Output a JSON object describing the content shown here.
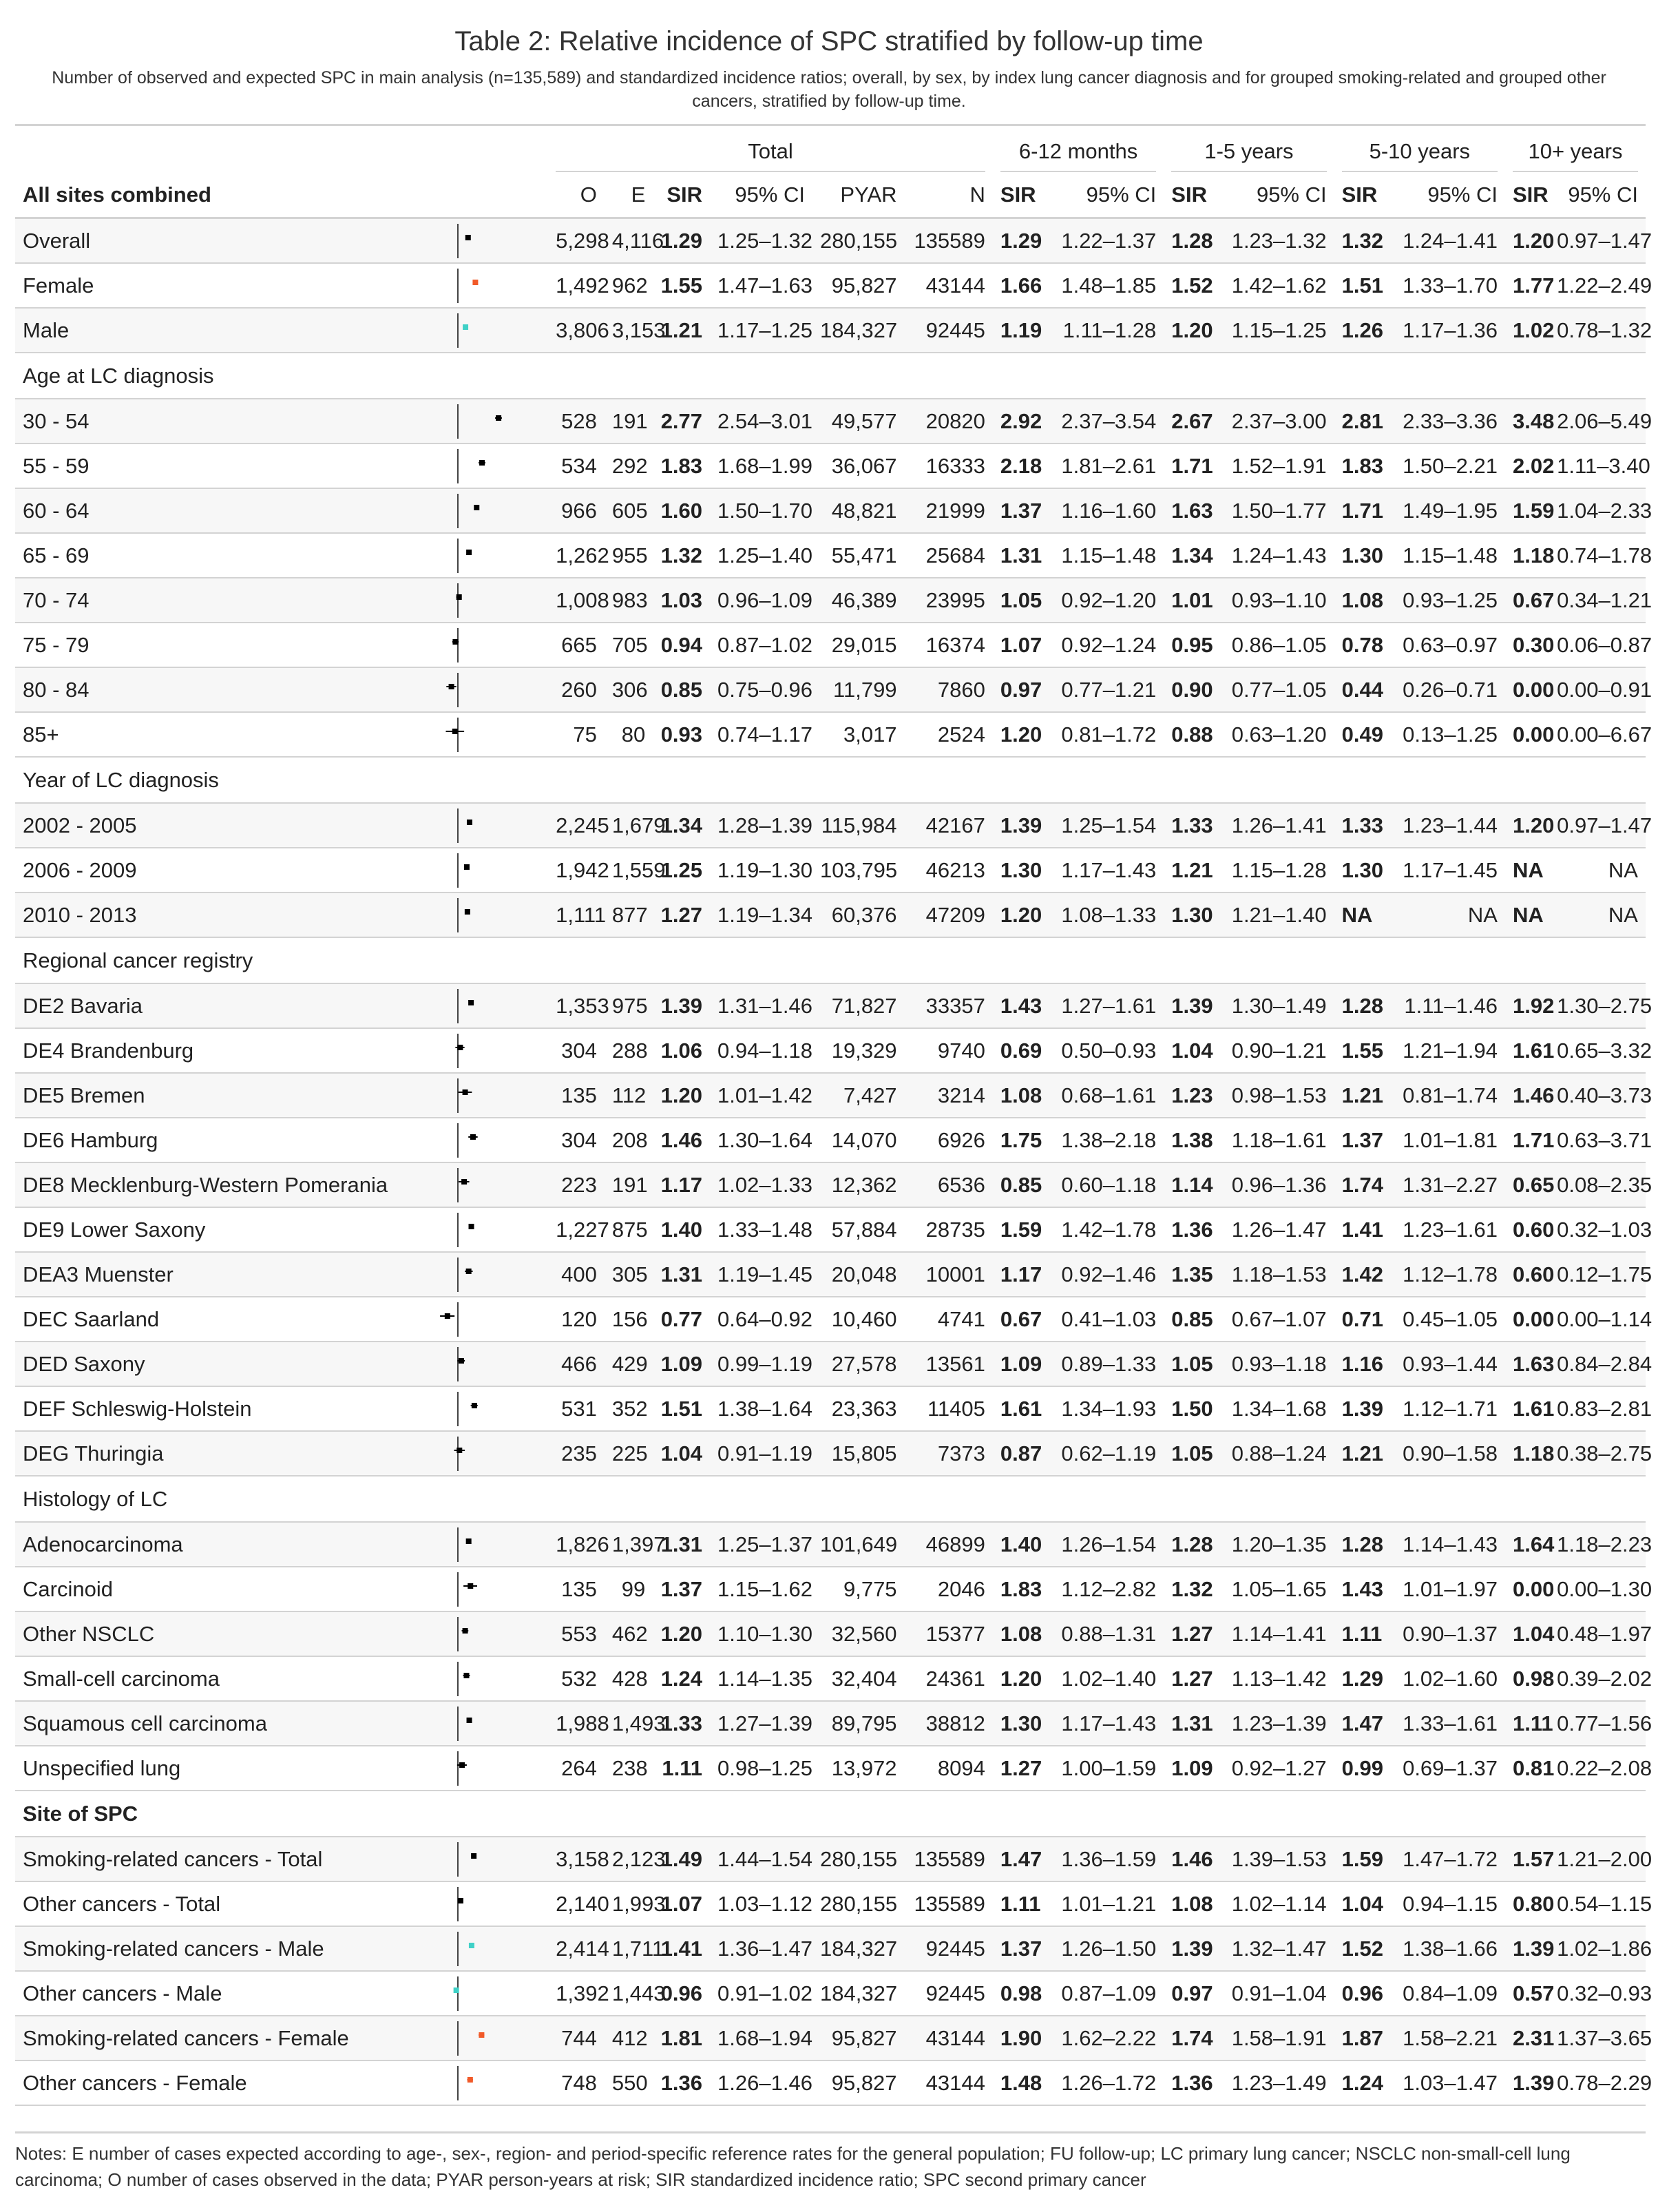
{
  "title": "Table 2: Relative incidence of SPC stratified by follow-up time",
  "subtitle": "Number of observed and expected SPC in main analysis (n=135,589) and standardized incidence ratios; overall, by sex, by index lung cancer diagnosis and for grouped smoking-related and grouped other cancers, stratified by follow-up time.",
  "spanners": [
    "Total",
    "6-12 months",
    "1-5 years",
    "5-10 years",
    "10+ years"
  ],
  "lead_header": "All sites combined",
  "col_headers": [
    "O",
    "E",
    "SIR",
    "95% CI",
    "PYAR",
    "N",
    "SIR",
    "95% CI",
    "SIR",
    "95% CI",
    "SIR",
    "95% CI",
    "SIR",
    "95% CI"
  ],
  "colors": {
    "female": "#f15a29",
    "male": "#3fd1c7",
    "default": "#000000",
    "rule": "#d3d3d3"
  },
  "rows": [
    {
      "label": "Overall",
      "O": "5,298",
      "E": "4,116",
      "SIR": "1.29",
      "CI": "1.25–1.32",
      "PYAR": "280,155",
      "N": "135589",
      "s1": "1.29",
      "c1": "1.22–1.37",
      "s2": "1.28",
      "c2": "1.23–1.32",
      "s3": "1.32",
      "c3": "1.24–1.41",
      "s4": "1.20",
      "c4": "0.97–1.47",
      "est": 1.29,
      "lo": 1.25,
      "hi": 1.32,
      "mc": "default"
    },
    {
      "label": "Female",
      "O": "1,492",
      "E": "962",
      "SIR": "1.55",
      "CI": "1.47–1.63",
      "PYAR": "95,827",
      "N": "43144",
      "s1": "1.66",
      "c1": "1.48–1.85",
      "s2": "1.52",
      "c2": "1.42–1.62",
      "s3": "1.51",
      "c3": "1.33–1.70",
      "s4": "1.77",
      "c4": "1.22–2.49",
      "est": 1.55,
      "lo": 1.47,
      "hi": 1.63,
      "mc": "female"
    },
    {
      "label": "Male",
      "O": "3,806",
      "E": "3,153",
      "SIR": "1.21",
      "CI": "1.17–1.25",
      "PYAR": "184,327",
      "N": "92445",
      "s1": "1.19",
      "c1": "1.11–1.28",
      "s2": "1.20",
      "c2": "1.15–1.25",
      "s3": "1.26",
      "c3": "1.17–1.36",
      "s4": "1.02",
      "c4": "0.78–1.32",
      "est": 1.21,
      "lo": 1.17,
      "hi": 1.25,
      "mc": "male"
    },
    {
      "group": "Age at LC diagnosis"
    },
    {
      "label": "30 - 54",
      "O": "528",
      "E": "191",
      "SIR": "2.77",
      "CI": "2.54–3.01",
      "PYAR": "49,577",
      "N": "20820",
      "s1": "2.92",
      "c1": "2.37–3.54",
      "s2": "2.67",
      "c2": "2.37–3.00",
      "s3": "2.81",
      "c3": "2.33–3.36",
      "s4": "3.48",
      "c4": "2.06–5.49",
      "est": 2.77,
      "lo": 2.54,
      "hi": 3.01,
      "mc": "default"
    },
    {
      "label": "55 - 59",
      "O": "534",
      "E": "292",
      "SIR": "1.83",
      "CI": "1.68–1.99",
      "PYAR": "36,067",
      "N": "16333",
      "s1": "2.18",
      "c1": "1.81–2.61",
      "s2": "1.71",
      "c2": "1.52–1.91",
      "s3": "1.83",
      "c3": "1.50–2.21",
      "s4": "2.02",
      "c4": "1.11–3.40",
      "est": 1.83,
      "lo": 1.68,
      "hi": 1.99,
      "mc": "default"
    },
    {
      "label": "60 - 64",
      "O": "966",
      "E": "605",
      "SIR": "1.60",
      "CI": "1.50–1.70",
      "PYAR": "48,821",
      "N": "21999",
      "s1": "1.37",
      "c1": "1.16–1.60",
      "s2": "1.63",
      "c2": "1.50–1.77",
      "s3": "1.71",
      "c3": "1.49–1.95",
      "s4": "1.59",
      "c4": "1.04–2.33",
      "est": 1.6,
      "lo": 1.5,
      "hi": 1.7,
      "mc": "default"
    },
    {
      "label": "65 - 69",
      "O": "1,262",
      "E": "955",
      "SIR": "1.32",
      "CI": "1.25–1.40",
      "PYAR": "55,471",
      "N": "25684",
      "s1": "1.31",
      "c1": "1.15–1.48",
      "s2": "1.34",
      "c2": "1.24–1.43",
      "s3": "1.30",
      "c3": "1.15–1.48",
      "s4": "1.18",
      "c4": "0.74–1.78",
      "est": 1.32,
      "lo": 1.25,
      "hi": 1.4,
      "mc": "default"
    },
    {
      "label": "70 - 74",
      "O": "1,008",
      "E": "983",
      "SIR": "1.03",
      "CI": "0.96–1.09",
      "PYAR": "46,389",
      "N": "23995",
      "s1": "1.05",
      "c1": "0.92–1.20",
      "s2": "1.01",
      "c2": "0.93–1.10",
      "s3": "1.08",
      "c3": "0.93–1.25",
      "s4": "0.67",
      "c4": "0.34–1.21",
      "est": 1.03,
      "lo": 0.96,
      "hi": 1.09,
      "mc": "default"
    },
    {
      "label": "75 - 79",
      "O": "665",
      "E": "705",
      "SIR": "0.94",
      "CI": "0.87–1.02",
      "PYAR": "29,015",
      "N": "16374",
      "s1": "1.07",
      "c1": "0.92–1.24",
      "s2": "0.95",
      "c2": "0.86–1.05",
      "s3": "0.78",
      "c3": "0.63–0.97",
      "s4": "0.30",
      "c4": "0.06–0.87",
      "est": 0.94,
      "lo": 0.87,
      "hi": 1.02,
      "mc": "default"
    },
    {
      "label": "80 - 84",
      "O": "260",
      "E": "306",
      "SIR": "0.85",
      "CI": "0.75–0.96",
      "PYAR": "11,799",
      "N": "7860",
      "s1": "0.97",
      "c1": "0.77–1.21",
      "s2": "0.90",
      "c2": "0.77–1.05",
      "s3": "0.44",
      "c3": "0.26–0.71",
      "s4": "0.00",
      "c4": "0.00–0.91",
      "est": 0.85,
      "lo": 0.75,
      "hi": 0.96,
      "mc": "default"
    },
    {
      "label": "85+",
      "O": "75",
      "E": "80",
      "SIR": "0.93",
      "CI": "0.74–1.17",
      "PYAR": "3,017",
      "N": "2524",
      "s1": "1.20",
      "c1": "0.81–1.72",
      "s2": "0.88",
      "c2": "0.63–1.20",
      "s3": "0.49",
      "c3": "0.13–1.25",
      "s4": "0.00",
      "c4": "0.00–6.67",
      "est": 0.93,
      "lo": 0.74,
      "hi": 1.17,
      "mc": "default"
    },
    {
      "group": "Year of LC diagnosis"
    },
    {
      "label": "2002 - 2005",
      "O": "2,245",
      "E": "1,679",
      "SIR": "1.34",
      "CI": "1.28–1.39",
      "PYAR": "115,984",
      "N": "42167",
      "s1": "1.39",
      "c1": "1.25–1.54",
      "s2": "1.33",
      "c2": "1.26–1.41",
      "s3": "1.33",
      "c3": "1.23–1.44",
      "s4": "1.20",
      "c4": "0.97–1.47",
      "est": 1.34,
      "lo": 1.28,
      "hi": 1.39,
      "mc": "default"
    },
    {
      "label": "2006 - 2009",
      "O": "1,942",
      "E": "1,559",
      "SIR": "1.25",
      "CI": "1.19–1.30",
      "PYAR": "103,795",
      "N": "46213",
      "s1": "1.30",
      "c1": "1.17–1.43",
      "s2": "1.21",
      "c2": "1.15–1.28",
      "s3": "1.30",
      "c3": "1.17–1.45",
      "s4": "NA",
      "c4": "NA",
      "est": 1.25,
      "lo": 1.19,
      "hi": 1.3,
      "mc": "default"
    },
    {
      "label": "2010 - 2013",
      "O": "1,111",
      "E": "877",
      "SIR": "1.27",
      "CI": "1.19–1.34",
      "PYAR": "60,376",
      "N": "47209",
      "s1": "1.20",
      "c1": "1.08–1.33",
      "s2": "1.30",
      "c2": "1.21–1.40",
      "s3": "NA",
      "c3": "NA",
      "s4": "NA",
      "c4": "NA",
      "est": 1.27,
      "lo": 1.19,
      "hi": 1.34,
      "mc": "default"
    },
    {
      "group": "Regional cancer registry"
    },
    {
      "label": "DE2 Bavaria",
      "O": "1,353",
      "E": "975",
      "SIR": "1.39",
      "CI": "1.31–1.46",
      "PYAR": "71,827",
      "N": "33357",
      "s1": "1.43",
      "c1": "1.27–1.61",
      "s2": "1.39",
      "c2": "1.30–1.49",
      "s3": "1.28",
      "c3": "1.11–1.46",
      "s4": "1.92",
      "c4": "1.30–2.75",
      "est": 1.39,
      "lo": 1.31,
      "hi": 1.46,
      "mc": "default"
    },
    {
      "label": "DE4 Brandenburg",
      "O": "304",
      "E": "288",
      "SIR": "1.06",
      "CI": "0.94–1.18",
      "PYAR": "19,329",
      "N": "9740",
      "s1": "0.69",
      "c1": "0.50–0.93",
      "s2": "1.04",
      "c2": "0.90–1.21",
      "s3": "1.55",
      "c3": "1.21–1.94",
      "s4": "1.61",
      "c4": "0.65–3.32",
      "est": 1.06,
      "lo": 0.94,
      "hi": 1.18,
      "mc": "default"
    },
    {
      "label": "DE5 Bremen",
      "O": "135",
      "E": "112",
      "SIR": "1.20",
      "CI": "1.01–1.42",
      "PYAR": "7,427",
      "N": "3214",
      "s1": "1.08",
      "c1": "0.68–1.61",
      "s2": "1.23",
      "c2": "0.98–1.53",
      "s3": "1.21",
      "c3": "0.81–1.74",
      "s4": "1.46",
      "c4": "0.40–3.73",
      "est": 1.2,
      "lo": 1.01,
      "hi": 1.42,
      "mc": "default"
    },
    {
      "label": "DE6 Hamburg",
      "O": "304",
      "E": "208",
      "SIR": "1.46",
      "CI": "1.30–1.64",
      "PYAR": "14,070",
      "N": "6926",
      "s1": "1.75",
      "c1": "1.38–2.18",
      "s2": "1.38",
      "c2": "1.18–1.61",
      "s3": "1.37",
      "c3": "1.01–1.81",
      "s4": "1.71",
      "c4": "0.63–3.71",
      "est": 1.46,
      "lo": 1.3,
      "hi": 1.64,
      "mc": "default"
    },
    {
      "label": "DE8 Mecklenburg-Western Pomerania",
      "O": "223",
      "E": "191",
      "SIR": "1.17",
      "CI": "1.02–1.33",
      "PYAR": "12,362",
      "N": "6536",
      "s1": "0.85",
      "c1": "0.60–1.18",
      "s2": "1.14",
      "c2": "0.96–1.36",
      "s3": "1.74",
      "c3": "1.31–2.27",
      "s4": "0.65",
      "c4": "0.08–2.35",
      "est": 1.17,
      "lo": 1.02,
      "hi": 1.33,
      "mc": "default"
    },
    {
      "label": "DE9 Lower Saxony",
      "O": "1,227",
      "E": "875",
      "SIR": "1.40",
      "CI": "1.33–1.48",
      "PYAR": "57,884",
      "N": "28735",
      "s1": "1.59",
      "c1": "1.42–1.78",
      "s2": "1.36",
      "c2": "1.26–1.47",
      "s3": "1.41",
      "c3": "1.23–1.61",
      "s4": "0.60",
      "c4": "0.32–1.03",
      "est": 1.4,
      "lo": 1.33,
      "hi": 1.48,
      "mc": "default"
    },
    {
      "label": "DEA3 Muenster",
      "O": "400",
      "E": "305",
      "SIR": "1.31",
      "CI": "1.19–1.45",
      "PYAR": "20,048",
      "N": "10001",
      "s1": "1.17",
      "c1": "0.92–1.46",
      "s2": "1.35",
      "c2": "1.18–1.53",
      "s3": "1.42",
      "c3": "1.12–1.78",
      "s4": "0.60",
      "c4": "0.12–1.75",
      "est": 1.31,
      "lo": 1.19,
      "hi": 1.45,
      "mc": "default"
    },
    {
      "label": "DEC Saarland",
      "O": "120",
      "E": "156",
      "SIR": "0.77",
      "CI": "0.64–0.92",
      "PYAR": "10,460",
      "N": "4741",
      "s1": "0.67",
      "c1": "0.41–1.03",
      "s2": "0.85",
      "c2": "0.67–1.07",
      "s3": "0.71",
      "c3": "0.45–1.05",
      "s4": "0.00",
      "c4": "0.00–1.14",
      "est": 0.77,
      "lo": 0.64,
      "hi": 0.92,
      "mc": "default"
    },
    {
      "label": "DED Saxony",
      "O": "466",
      "E": "429",
      "SIR": "1.09",
      "CI": "0.99–1.19",
      "PYAR": "27,578",
      "N": "13561",
      "s1": "1.09",
      "c1": "0.89–1.33",
      "s2": "1.05",
      "c2": "0.93–1.18",
      "s3": "1.16",
      "c3": "0.93–1.44",
      "s4": "1.63",
      "c4": "0.84–2.84",
      "est": 1.09,
      "lo": 0.99,
      "hi": 1.19,
      "mc": "default"
    },
    {
      "label": "DEF Schleswig-Holstein",
      "O": "531",
      "E": "352",
      "SIR": "1.51",
      "CI": "1.38–1.64",
      "PYAR": "23,363",
      "N": "11405",
      "s1": "1.61",
      "c1": "1.34–1.93",
      "s2": "1.50",
      "c2": "1.34–1.68",
      "s3": "1.39",
      "c3": "1.12–1.71",
      "s4": "1.61",
      "c4": "0.83–2.81",
      "est": 1.51,
      "lo": 1.38,
      "hi": 1.64,
      "mc": "default"
    },
    {
      "label": "DEG Thuringia",
      "O": "235",
      "E": "225",
      "SIR": "1.04",
      "CI": "0.91–1.19",
      "PYAR": "15,805",
      "N": "7373",
      "s1": "0.87",
      "c1": "0.62–1.19",
      "s2": "1.05",
      "c2": "0.88–1.24",
      "s3": "1.21",
      "c3": "0.90–1.58",
      "s4": "1.18",
      "c4": "0.38–2.75",
      "est": 1.04,
      "lo": 0.91,
      "hi": 1.19,
      "mc": "default"
    },
    {
      "group": "Histology of LC"
    },
    {
      "label": "Adenocarcinoma",
      "O": "1,826",
      "E": "1,397",
      "SIR": "1.31",
      "CI": "1.25–1.37",
      "PYAR": "101,649",
      "N": "46899",
      "s1": "1.40",
      "c1": "1.26–1.54",
      "s2": "1.28",
      "c2": "1.20–1.35",
      "s3": "1.28",
      "c3": "1.14–1.43",
      "s4": "1.64",
      "c4": "1.18–2.23",
      "est": 1.31,
      "lo": 1.25,
      "hi": 1.37,
      "mc": "default"
    },
    {
      "label": "Carcinoid",
      "O": "135",
      "E": "99",
      "SIR": "1.37",
      "CI": "1.15–1.62",
      "PYAR": "9,775",
      "N": "2046",
      "s1": "1.83",
      "c1": "1.12–2.82",
      "s2": "1.32",
      "c2": "1.05–1.65",
      "s3": "1.43",
      "c3": "1.01–1.97",
      "s4": "0.00",
      "c4": "0.00–1.30",
      "est": 1.37,
      "lo": 1.15,
      "hi": 1.62,
      "mc": "default"
    },
    {
      "label": "Other NSCLC",
      "O": "553",
      "E": "462",
      "SIR": "1.20",
      "CI": "1.10–1.30",
      "PYAR": "32,560",
      "N": "15377",
      "s1": "1.08",
      "c1": "0.88–1.31",
      "s2": "1.27",
      "c2": "1.14–1.41",
      "s3": "1.11",
      "c3": "0.90–1.37",
      "s4": "1.04",
      "c4": "0.48–1.97",
      "est": 1.2,
      "lo": 1.1,
      "hi": 1.3,
      "mc": "default"
    },
    {
      "label": "Small-cell carcinoma",
      "O": "532",
      "E": "428",
      "SIR": "1.24",
      "CI": "1.14–1.35",
      "PYAR": "32,404",
      "N": "24361",
      "s1": "1.20",
      "c1": "1.02–1.40",
      "s2": "1.27",
      "c2": "1.13–1.42",
      "s3": "1.29",
      "c3": "1.02–1.60",
      "s4": "0.98",
      "c4": "0.39–2.02",
      "est": 1.24,
      "lo": 1.14,
      "hi": 1.35,
      "mc": "default"
    },
    {
      "label": "Squamous cell carcinoma",
      "O": "1,988",
      "E": "1,493",
      "SIR": "1.33",
      "CI": "1.27–1.39",
      "PYAR": "89,795",
      "N": "38812",
      "s1": "1.30",
      "c1": "1.17–1.43",
      "s2": "1.31",
      "c2": "1.23–1.39",
      "s3": "1.47",
      "c3": "1.33–1.61",
      "s4": "1.11",
      "c4": "0.77–1.56",
      "est": 1.33,
      "lo": 1.27,
      "hi": 1.39,
      "mc": "default"
    },
    {
      "label": "Unspecified lung",
      "O": "264",
      "E": "238",
      "SIR": "1.11",
      "CI": "0.98–1.25",
      "PYAR": "13,972",
      "N": "8094",
      "s1": "1.27",
      "c1": "1.00–1.59",
      "s2": "1.09",
      "c2": "0.92–1.27",
      "s3": "0.99",
      "c3": "0.69–1.37",
      "s4": "0.81",
      "c4": "0.22–2.08",
      "est": 1.11,
      "lo": 0.98,
      "hi": 1.25,
      "mc": "default"
    },
    {
      "group": "Site of SPC",
      "bold": true
    },
    {
      "label": "Smoking-related cancers - Total",
      "O": "3,158",
      "E": "2,123",
      "SIR": "1.49",
      "CI": "1.44–1.54",
      "PYAR": "280,155",
      "N": "135589",
      "s1": "1.47",
      "c1": "1.36–1.59",
      "s2": "1.46",
      "c2": "1.39–1.53",
      "s3": "1.59",
      "c3": "1.47–1.72",
      "s4": "1.57",
      "c4": "1.21–2.00",
      "est": 1.49,
      "lo": 1.44,
      "hi": 1.54,
      "mc": "default"
    },
    {
      "label": "Other cancers - Total",
      "O": "2,140",
      "E": "1,993",
      "SIR": "1.07",
      "CI": "1.03–1.12",
      "PYAR": "280,155",
      "N": "135589",
      "s1": "1.11",
      "c1": "1.01–1.21",
      "s2": "1.08",
      "c2": "1.02–1.14",
      "s3": "1.04",
      "c3": "0.94–1.15",
      "s4": "0.80",
      "c4": "0.54–1.15",
      "est": 1.07,
      "lo": 1.03,
      "hi": 1.12,
      "mc": "default"
    },
    {
      "label": "Smoking-related cancers - Male",
      "O": "2,414",
      "E": "1,711",
      "SIR": "1.41",
      "CI": "1.36–1.47",
      "PYAR": "184,327",
      "N": "92445",
      "s1": "1.37",
      "c1": "1.26–1.50",
      "s2": "1.39",
      "c2": "1.32–1.47",
      "s3": "1.52",
      "c3": "1.38–1.66",
      "s4": "1.39",
      "c4": "1.02–1.86",
      "est": 1.41,
      "lo": 1.36,
      "hi": 1.47,
      "mc": "male"
    },
    {
      "label": "Other cancers - Male",
      "O": "1,392",
      "E": "1,443",
      "SIR": "0.96",
      "CI": "0.91–1.02",
      "PYAR": "184,327",
      "N": "92445",
      "s1": "0.98",
      "c1": "0.87–1.09",
      "s2": "0.97",
      "c2": "0.91–1.04",
      "s3": "0.96",
      "c3": "0.84–1.09",
      "s4": "0.57",
      "c4": "0.32–0.93",
      "est": 0.96,
      "lo": 0.91,
      "hi": 1.02,
      "mc": "male"
    },
    {
      "label": "Smoking-related cancers - Female",
      "O": "744",
      "E": "412",
      "SIR": "1.81",
      "CI": "1.68–1.94",
      "PYAR": "95,827",
      "N": "43144",
      "s1": "1.90",
      "c1": "1.62–2.22",
      "s2": "1.74",
      "c2": "1.58–1.91",
      "s3": "1.87",
      "c3": "1.58–2.21",
      "s4": "2.31",
      "c4": "1.37–3.65",
      "est": 1.81,
      "lo": 1.68,
      "hi": 1.94,
      "mc": "female"
    },
    {
      "label": "Other cancers - Female",
      "O": "748",
      "E": "550",
      "SIR": "1.36",
      "CI": "1.26–1.46",
      "PYAR": "95,827",
      "N": "43144",
      "s1": "1.48",
      "c1": "1.26–1.72",
      "s2": "1.36",
      "c2": "1.23–1.49",
      "s3": "1.24",
      "c3": "1.03–1.47",
      "s4": "1.39",
      "c4": "0.78–2.29",
      "est": 1.36,
      "lo": 1.26,
      "hi": 1.46,
      "mc": "female"
    }
  ],
  "notes": "Notes: E number of cases expected according to age-, sex-, region- and period-specific reference rates for the general population; FU follow-up; LC primary lung cancer; NSCLC non-small-cell lung carcinoma; O number of cases observed in the data; PYAR person-years at risk; SIR standardized incidence ratio; SPC second primary cancer"
}
